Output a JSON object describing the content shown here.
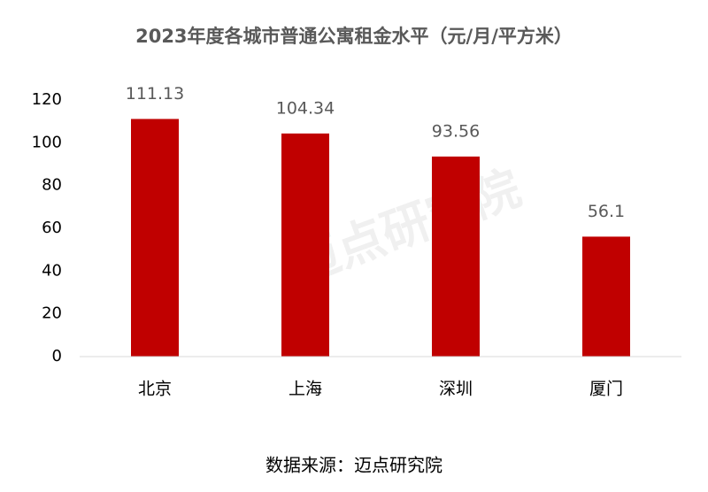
{
  "chart_data": {
    "type": "bar",
    "title": "2023年度各城市普通公寓租金水平（元/月/平方米）",
    "categories": [
      "北京",
      "上海",
      "深圳",
      "厦门"
    ],
    "values": [
      111.13,
      104.34,
      93.56,
      56.1
    ],
    "color": "#c00000",
    "ylim": [
      0,
      120
    ],
    "yticks": [
      0,
      20,
      40,
      60,
      80,
      100,
      120
    ],
    "grid": false,
    "source": "数据来源：迈点研究院",
    "watermark": "迈点研究院"
  }
}
